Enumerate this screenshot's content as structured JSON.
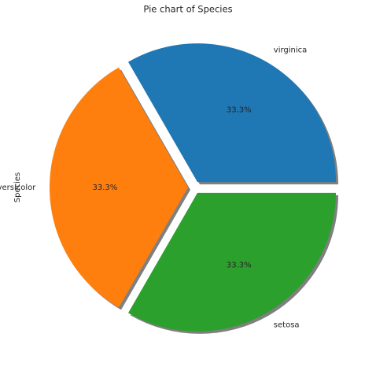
{
  "chart_data": {
    "type": "pie",
    "title": "Pie chart of Species",
    "y_label": "Species",
    "categories": [
      "virginica",
      "versicolor",
      "setosa"
    ],
    "values": [
      33.3,
      33.3,
      33.3
    ],
    "value_labels": [
      "33.3%",
      "33.3%",
      "33.3%"
    ],
    "colors": [
      "#1f77b4",
      "#ff7f0e",
      "#2ca02c"
    ],
    "shadow": true
  }
}
